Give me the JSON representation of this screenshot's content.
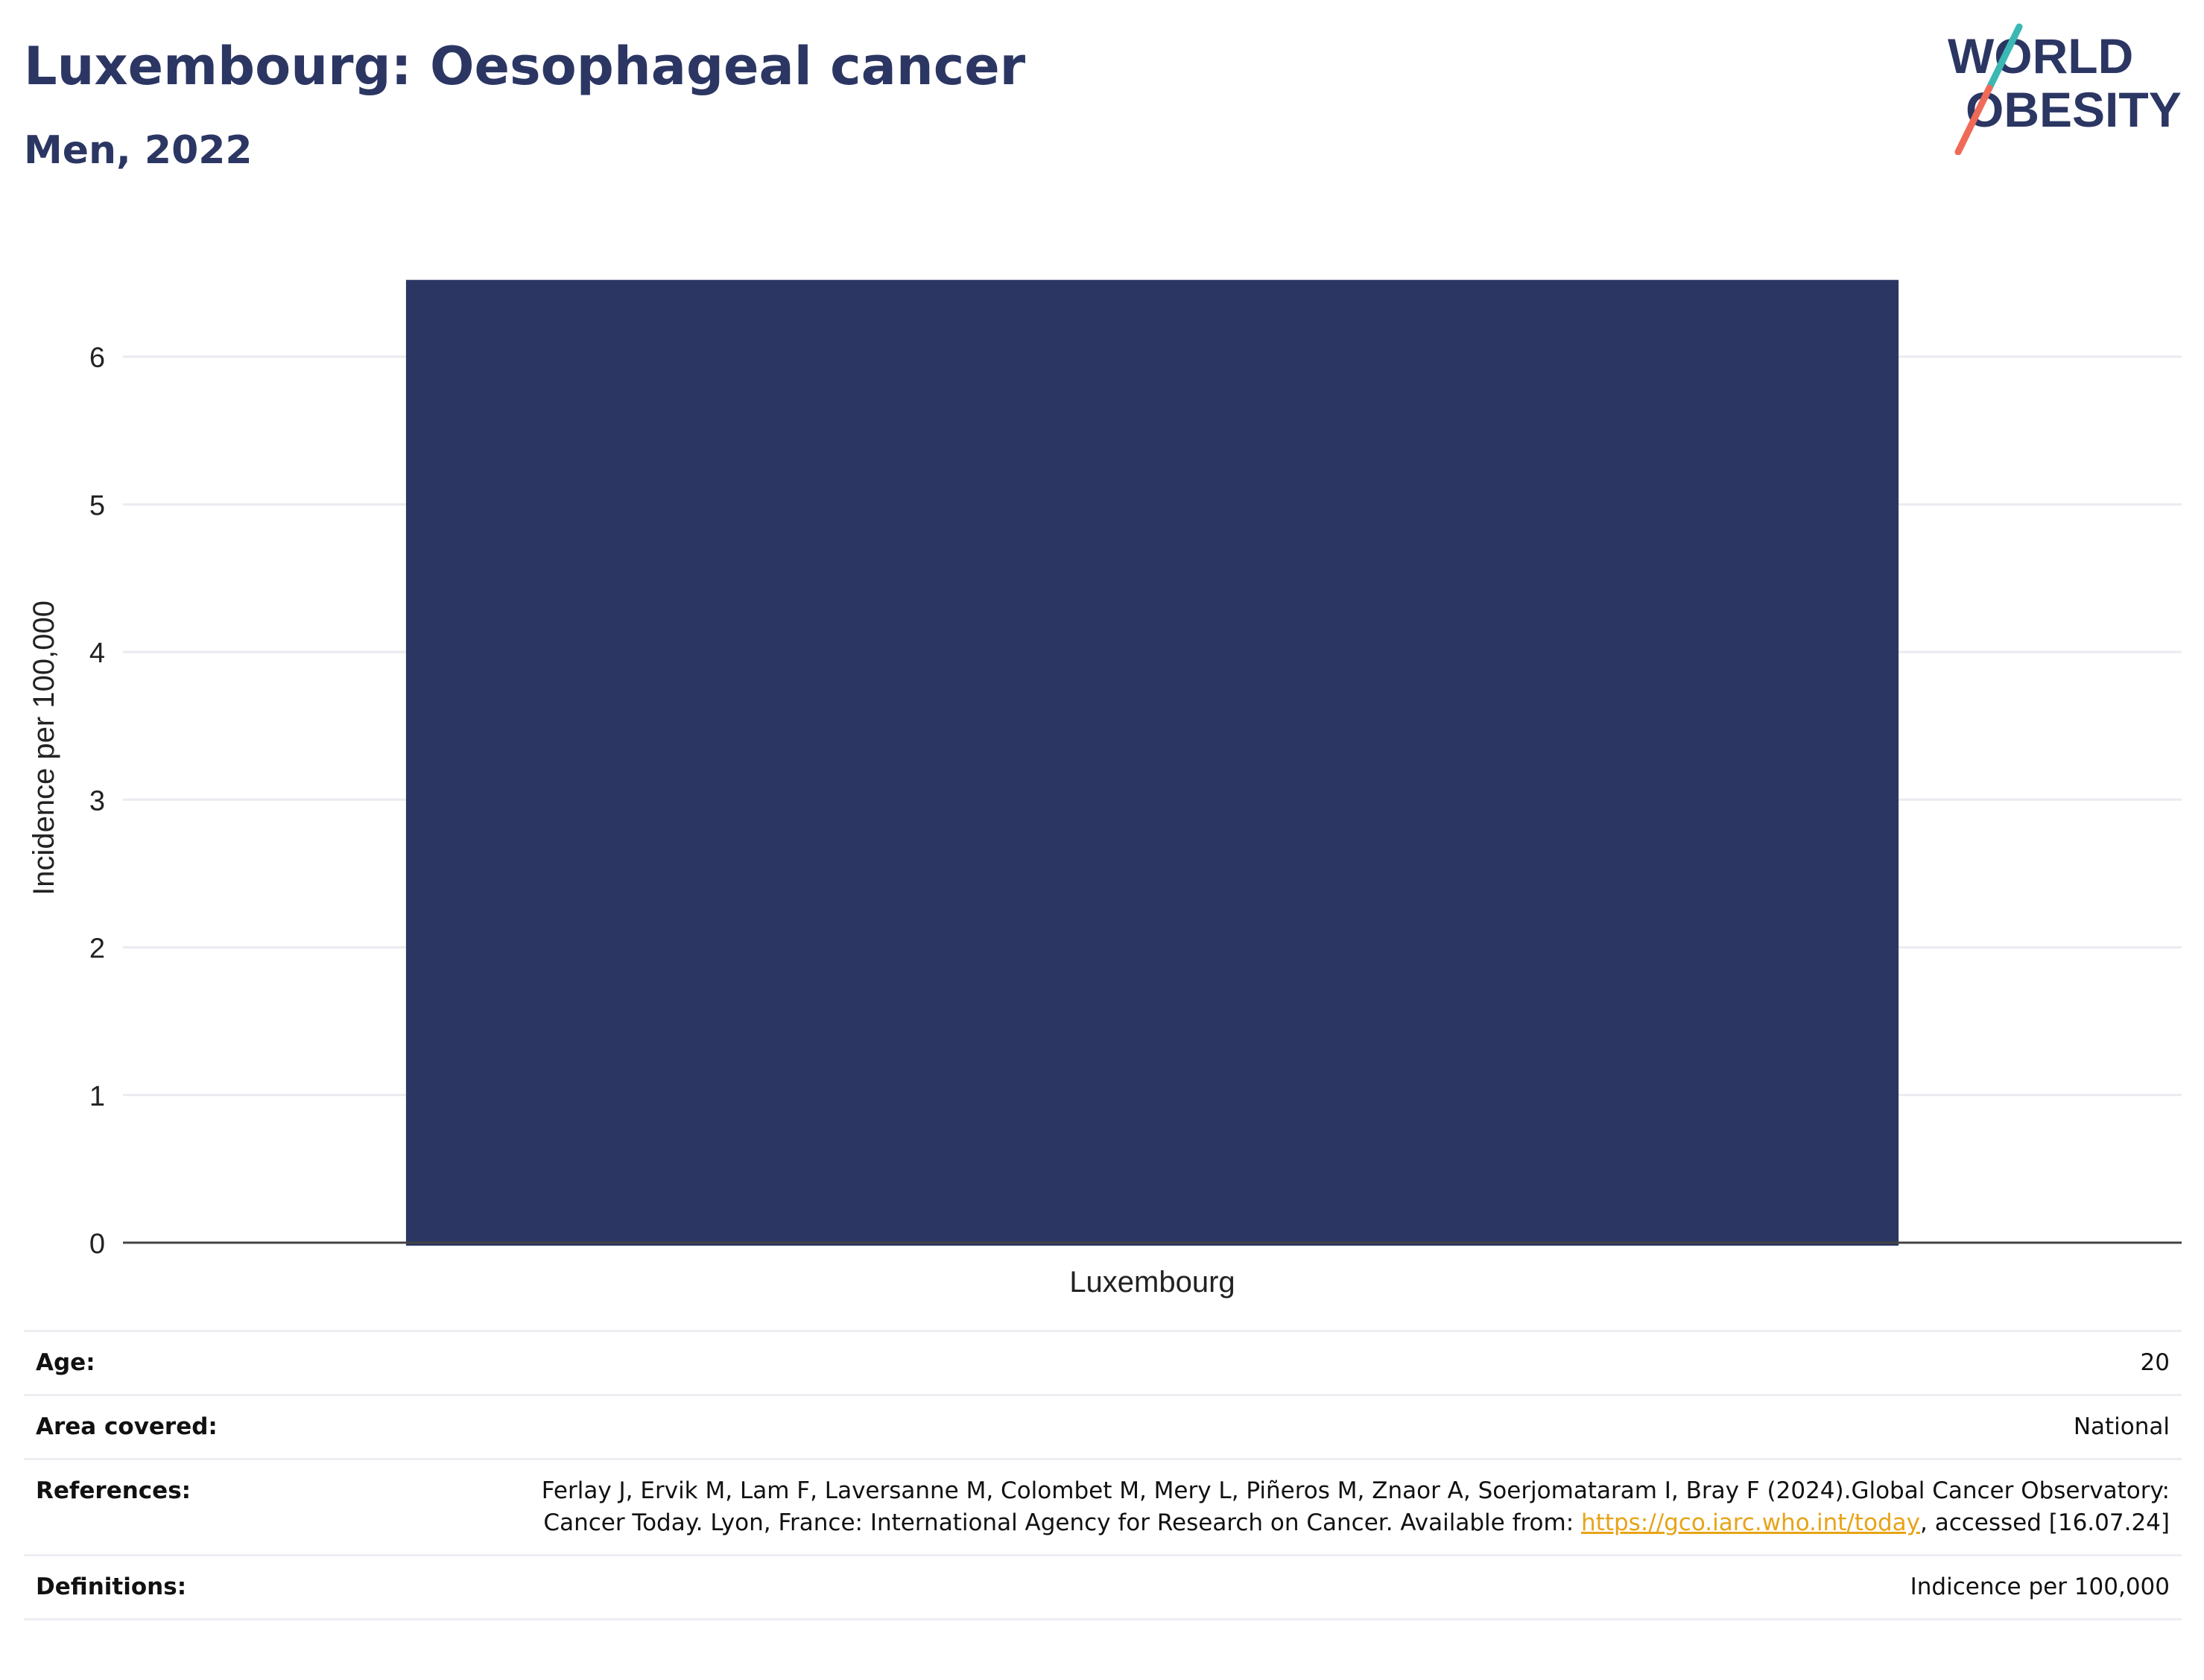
{
  "header": {
    "title": "Luxembourg: Oesophageal cancer",
    "subtitle": "Men, 2022"
  },
  "logo": {
    "line1": "WORLD",
    "line2": "OBESITY",
    "text_color": "#2b3663",
    "accent_colors": [
      "#3bb8b3",
      "#ef6a57"
    ]
  },
  "chart_data": {
    "type": "bar",
    "title": "",
    "xlabel": "",
    "ylabel": "Incidence per 100,000",
    "categories": [
      "Luxembourg"
    ],
    "values": [
      6.52
    ],
    "ylim": [
      0,
      6.7
    ],
    "yticks": [
      0,
      1,
      2,
      3,
      4,
      5,
      6
    ],
    "grid": true,
    "bar_color": "#2b3663"
  },
  "meta": [
    {
      "key": "Age:",
      "value": "20"
    },
    {
      "key": "Area covered:",
      "value": "National"
    },
    {
      "key": "References:",
      "value_pre": "Ferlay J, Ervik M, Lam F, Laversanne M, Colombet M, Mery L, Piñeros M, Znaor A, Soerjomataram I, Bray F (2024).Global Cancer Observatory: Cancer Today. Lyon, France: International Agency for Research on Cancer. Available from: ",
      "link": "https://gco.iarc.who.int/today",
      "value_post": ", accessed [16.07.24]"
    },
    {
      "key": "Definitions:",
      "value": "Indicence per 100,000"
    }
  ]
}
